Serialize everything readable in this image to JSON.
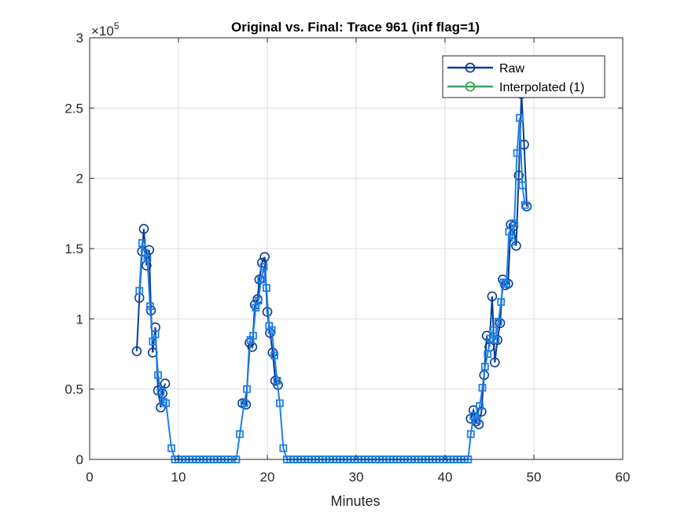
{
  "chart_data": {
    "type": "line",
    "title": "Original vs. Final: Trace 961 (inf flag=1)",
    "xlabel": "Minutes",
    "ylabel": "",
    "xlim": [
      0,
      60
    ],
    "ylim": [
      0,
      300000
    ],
    "y_exponent_label": "×10",
    "y_exponent_power": "5",
    "x_ticks": [
      0,
      10,
      20,
      30,
      40,
      50,
      60
    ],
    "x_tick_labels": [
      "0",
      "10",
      "20",
      "30",
      "40",
      "50",
      "60"
    ],
    "y_ticks": [
      0,
      50000,
      100000,
      150000,
      200000,
      250000,
      300000
    ],
    "y_tick_labels": [
      "0",
      "0.5",
      "1",
      "1.5",
      "2",
      "2.5",
      "3"
    ],
    "grid": true,
    "legend_position": "top-right",
    "series": [
      {
        "name": "Raw",
        "color": "#0a3d91",
        "marker": "circle",
        "x": [
          5.3,
          5.6,
          5.9,
          6.1,
          6.4,
          6.7,
          6.9,
          7.1,
          7.4,
          7.7,
          7.9,
          8.2,
          8.5,
          8.8,
          17.2,
          17.6,
          18.0,
          18.3,
          18.6,
          18.9,
          19.1,
          19.4,
          19.7,
          20.0,
          20.3,
          20.6,
          20.9,
          21.2,
          21.5,
          21.8,
          42.9,
          43.2,
          43.5,
          43.8,
          44.1,
          44.4,
          44.7,
          45.0,
          45.3,
          45.6,
          45.9,
          46.2,
          46.5,
          46.8,
          47.1,
          47.4,
          47.7,
          48.0,
          48.3,
          48.6,
          48.9,
          49.2,
          49.5,
          49.8,
          50.1
        ],
        "y": [
          77000,
          115000,
          148000,
          164000,
          138000,
          149000,
          106000,
          76000,
          94000,
          49000,
          37000,
          47000,
          54000,
          null,
          40000,
          39000,
          83000,
          80000,
          110000,
          114000,
          128000,
          140000,
          144000,
          105000,
          90000,
          76000,
          56000,
          53000,
          null,
          null,
          29000,
          35000,
          27000,
          25000,
          34000,
          60000,
          88000,
          80000,
          116000,
          69000,
          85000,
          97000,
          128000,
          124000,
          125000,
          167000,
          166000,
          152000,
          202000,
          260000,
          224000,
          180000,
          null,
          null,
          null
        ],
        "segments": [
          [
            [
              5.3,
              77000
            ],
            [
              5.6,
              115000
            ],
            [
              5.9,
              148000
            ],
            [
              6.1,
              164000
            ],
            [
              6.4,
              138000
            ],
            [
              6.7,
              149000
            ],
            [
              6.9,
              106000
            ],
            [
              7.1,
              76000
            ],
            [
              7.4,
              94000
            ],
            [
              7.7,
              49000
            ],
            [
              8.0,
              37000
            ],
            [
              8.2,
              47000
            ],
            [
              8.5,
              54000
            ]
          ],
          [
            [
              17.2,
              40000
            ],
            [
              17.6,
              39000
            ],
            [
              18.0,
              83000
            ],
            [
              18.3,
              80000
            ],
            [
              18.6,
              110000
            ],
            [
              18.9,
              114000
            ],
            [
              19.1,
              128000
            ],
            [
              19.4,
              140000
            ],
            [
              19.7,
              144000
            ],
            [
              20.0,
              105000
            ],
            [
              20.3,
              90000
            ],
            [
              20.6,
              76000
            ],
            [
              20.9,
              56000
            ],
            [
              21.2,
              53000
            ]
          ],
          [
            [
              42.9,
              29000
            ],
            [
              43.2,
              35000
            ],
            [
              43.5,
              27000
            ],
            [
              43.8,
              25000
            ],
            [
              44.1,
              34000
            ],
            [
              44.4,
              60000
            ],
            [
              44.7,
              88000
            ],
            [
              45.0,
              80000
            ],
            [
              45.3,
              116000
            ],
            [
              45.6,
              69000
            ],
            [
              45.9,
              85000
            ],
            [
              46.2,
              97000
            ],
            [
              46.5,
              128000
            ],
            [
              46.8,
              124000
            ],
            [
              47.1,
              125000
            ],
            [
              47.4,
              167000
            ],
            [
              47.7,
              166000
            ],
            [
              48.0,
              152000
            ],
            [
              48.3,
              202000
            ],
            [
              48.6,
              260000
            ],
            [
              48.9,
              224000
            ],
            [
              49.2,
              180000
            ]
          ]
        ]
      },
      {
        "name": "Interpolated (1)",
        "color": "#3fa35c",
        "marker": "circle",
        "x": [],
        "y": []
      },
      {
        "name": "",
        "color": "#1f7fe6",
        "marker": "square",
        "points": [
          [
            5.6,
            120000
          ],
          [
            5.9,
            154000
          ],
          [
            6.2,
            147000
          ],
          [
            6.5,
            143000
          ],
          [
            6.8,
            109000
          ],
          [
            7.1,
            84000
          ],
          [
            7.4,
            89000
          ],
          [
            7.7,
            60000
          ],
          [
            8.0,
            48000
          ],
          [
            8.3,
            41000
          ],
          [
            8.6,
            40000
          ],
          [
            9.2,
            8000
          ],
          [
            9.6,
            0
          ],
          [
            10.0,
            0
          ],
          [
            10.4,
            0
          ],
          [
            10.8,
            0
          ],
          [
            11.2,
            0
          ],
          [
            11.6,
            0
          ],
          [
            12.0,
            0
          ],
          [
            12.4,
            0
          ],
          [
            12.8,
            0
          ],
          [
            13.2,
            0
          ],
          [
            13.6,
            0
          ],
          [
            14.0,
            0
          ],
          [
            14.4,
            0
          ],
          [
            14.8,
            0
          ],
          [
            15.2,
            0
          ],
          [
            15.6,
            0
          ],
          [
            16.0,
            0
          ],
          [
            16.5,
            0
          ],
          [
            16.9,
            18000
          ],
          [
            17.4,
            40000
          ],
          [
            17.7,
            50000
          ],
          [
            18.1,
            85000
          ],
          [
            18.4,
            88000
          ],
          [
            18.7,
            108000
          ],
          [
            19.0,
            113000
          ],
          [
            19.3,
            128000
          ],
          [
            19.6,
            137000
          ],
          [
            19.9,
            122000
          ],
          [
            20.2,
            95000
          ],
          [
            20.5,
            92000
          ],
          [
            20.8,
            74000
          ],
          [
            21.1,
            56000
          ],
          [
            21.4,
            40000
          ],
          [
            21.8,
            8000
          ],
          [
            22.2,
            0
          ],
          [
            22.6,
            0
          ],
          [
            23.0,
            0
          ],
          [
            23.4,
            0
          ],
          [
            23.8,
            0
          ],
          [
            24.2,
            0
          ],
          [
            24.6,
            0
          ],
          [
            25.0,
            0
          ],
          [
            25.4,
            0
          ],
          [
            25.8,
            0
          ],
          [
            26.2,
            0
          ],
          [
            26.6,
            0
          ],
          [
            27.0,
            0
          ],
          [
            27.4,
            0
          ],
          [
            27.8,
            0
          ],
          [
            28.2,
            0
          ],
          [
            28.6,
            0
          ],
          [
            29.0,
            0
          ],
          [
            29.4,
            0
          ],
          [
            29.8,
            0
          ],
          [
            30.2,
            0
          ],
          [
            30.6,
            0
          ],
          [
            31.0,
            0
          ],
          [
            31.4,
            0
          ],
          [
            31.8,
            0
          ],
          [
            32.2,
            0
          ],
          [
            32.6,
            0
          ],
          [
            33.0,
            0
          ],
          [
            33.4,
            0
          ],
          [
            33.8,
            0
          ],
          [
            34.2,
            0
          ],
          [
            34.6,
            0
          ],
          [
            35.0,
            0
          ],
          [
            35.4,
            0
          ],
          [
            35.8,
            0
          ],
          [
            36.2,
            0
          ],
          [
            36.6,
            0
          ],
          [
            37.0,
            0
          ],
          [
            37.4,
            0
          ],
          [
            37.8,
            0
          ],
          [
            38.2,
            0
          ],
          [
            38.6,
            0
          ],
          [
            39.0,
            0
          ],
          [
            39.4,
            0
          ],
          [
            39.8,
            0
          ],
          [
            40.2,
            0
          ],
          [
            40.6,
            0
          ],
          [
            41.0,
            0
          ],
          [
            41.4,
            0
          ],
          [
            41.8,
            0
          ],
          [
            42.2,
            0
          ],
          [
            42.6,
            0
          ],
          [
            42.9,
            18000
          ],
          [
            43.2,
            31000
          ],
          [
            43.6,
            28000
          ],
          [
            43.9,
            38000
          ],
          [
            44.2,
            51000
          ],
          [
            44.5,
            66000
          ],
          [
            44.8,
            75000
          ],
          [
            45.1,
            86000
          ],
          [
            45.4,
            92000
          ],
          [
            45.7,
            85000
          ],
          [
            46.0,
            98000
          ],
          [
            46.3,
            112000
          ],
          [
            46.6,
            126000
          ],
          [
            46.9,
            125000
          ],
          [
            47.2,
            162000
          ],
          [
            47.5,
            155000
          ],
          [
            47.8,
            168000
          ],
          [
            48.1,
            218000
          ],
          [
            48.4,
            243000
          ],
          [
            48.7,
            195000
          ],
          [
            49.0,
            181000
          ]
        ]
      }
    ]
  }
}
